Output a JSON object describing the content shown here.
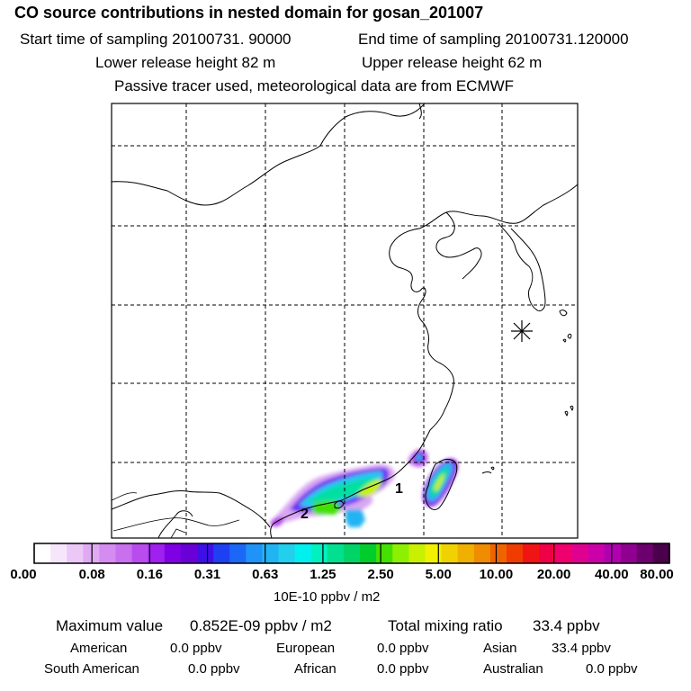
{
  "header": {
    "title": "CO  source contributions in nested domain for gosan_201007",
    "start": "Start time of sampling 20100731. 90000",
    "end": "End time of sampling 20100731.120000",
    "lower": "Lower release height   82 m",
    "upper": "Upper release height   62 m",
    "tracer": "Passive tracer used, meteorological data are from ECMWF"
  },
  "map": {
    "source_labels": [
      "1",
      "2"
    ],
    "receptor_marker": "receptor-star-icon"
  },
  "colorbar": {
    "colors": [
      "#ffffff",
      "#f6e6fb",
      "#ecc8f7",
      "#e0aaf3",
      "#d48cf0",
      "#c870ee",
      "#b84cec",
      "#a020f0",
      "#8000e6",
      "#6a00d8",
      "#3f0fe8",
      "#1f3ff2",
      "#1c68f6",
      "#1f93f7",
      "#21b4f2",
      "#22d0ee",
      "#00f0f0",
      "#00f0c0",
      "#00e090",
      "#00d466",
      "#00cc2c",
      "#44e000",
      "#8cf000",
      "#c8f000",
      "#f0f000",
      "#f0d200",
      "#f0b000",
      "#f08c00",
      "#f06400",
      "#f03c00",
      "#f01414",
      "#f00046",
      "#f0006e",
      "#e00090",
      "#cc00a8",
      "#b000b0",
      "#900090",
      "#6c006c",
      "#4a004a"
    ],
    "ticks": [
      "0.00",
      "0.08",
      "0.16",
      "0.31",
      "0.63",
      "1.25",
      "2.50",
      "5.00",
      "10.00",
      "20.00",
      "40.00",
      "80.00"
    ],
    "unit": "10E-10 ppbv / m2"
  },
  "stats": {
    "max_label": "Maximum value",
    "max_value": "0.852E-09 ppbv / m2",
    "total_label": "Total mixing ratio",
    "total_value": "33.4 ppbv",
    "regions": [
      {
        "name": "American",
        "value": "0.0 ppbv"
      },
      {
        "name": "European",
        "value": "0.0 ppbv"
      },
      {
        "name": "Asian",
        "value": "33.4 ppbv"
      },
      {
        "name": "South American",
        "value": "0.0 ppbv"
      },
      {
        "name": "African",
        "value": "0.0 ppbv"
      },
      {
        "name": "Australian",
        "value": "0.0 ppbv"
      }
    ]
  }
}
